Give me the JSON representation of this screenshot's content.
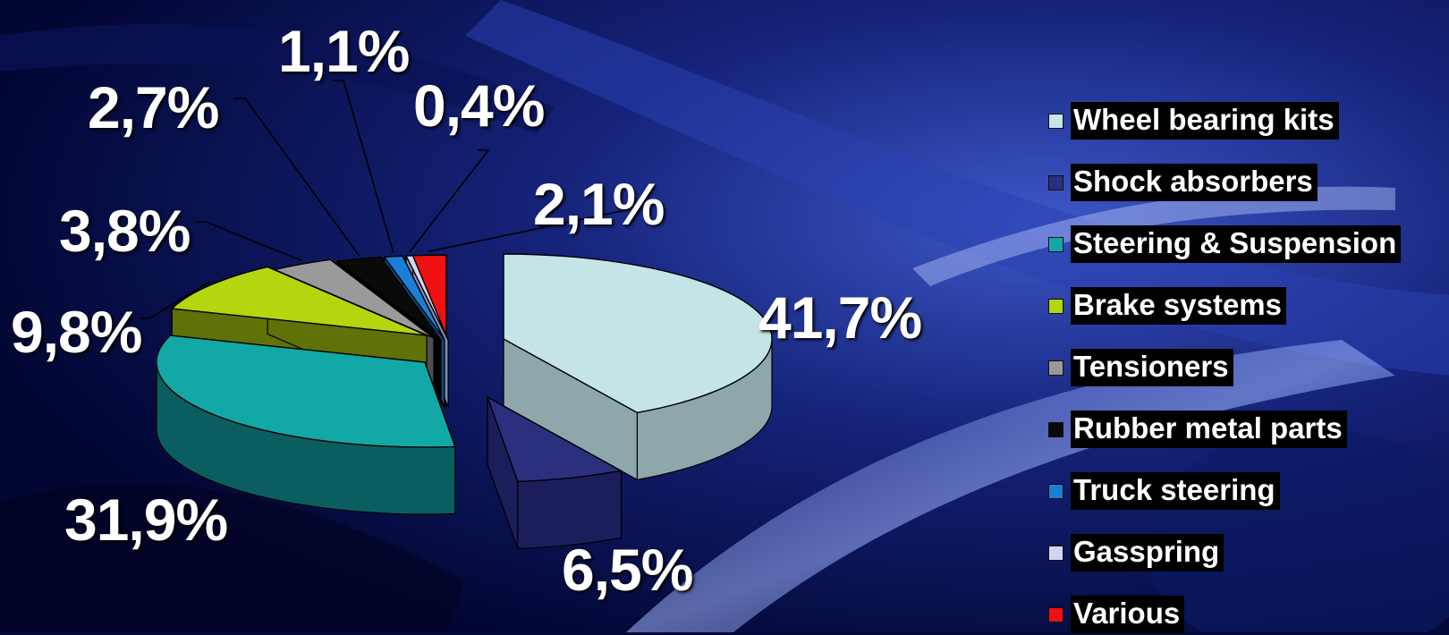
{
  "chart_data": {
    "type": "pie",
    "title": "",
    "style": "3d-exploded",
    "legend_position": "right",
    "slices": [
      {
        "label": "Wheel bearing kits",
        "value": 41.7,
        "display": "41,7%",
        "color": "#c5e4e8",
        "side_color": "#8ea7aa"
      },
      {
        "label": "Shock absorbers",
        "value": 6.5,
        "display": "6,5%",
        "color": "#2c2f7e",
        "side_color": "#1c1e5c"
      },
      {
        "label": "Steering & Suspension",
        "value": 31.9,
        "display": "31,9%",
        "color": "#12a8a6",
        "side_color": "#0b5e5f"
      },
      {
        "label": "Brake systems",
        "value": 9.8,
        "display": "9,8%",
        "color": "#b4d60e",
        "side_color": "#5e7208"
      },
      {
        "label": "Tensioners",
        "value": 3.8,
        "display": "3,8%",
        "color": "#9a9a9a",
        "side_color": "#4f4f4f"
      },
      {
        "label": "Rubber metal parts",
        "value": 2.7,
        "display": "2,7%",
        "color": "#0a0a0a",
        "side_color": "#000000"
      },
      {
        "label": "Truck steering",
        "value": 1.1,
        "display": "1,1%",
        "color": "#1b7fd8",
        "side_color": "#0e4a80"
      },
      {
        "label": "Gasspring",
        "value": 0.4,
        "display": "0,4%",
        "color": "#d4d4f4",
        "side_color": "#8c8cb0"
      },
      {
        "label": "Various",
        "value": 2.1,
        "display": "2,1%",
        "color": "#ee1111",
        "side_color": "#8a0808"
      }
    ]
  }
}
